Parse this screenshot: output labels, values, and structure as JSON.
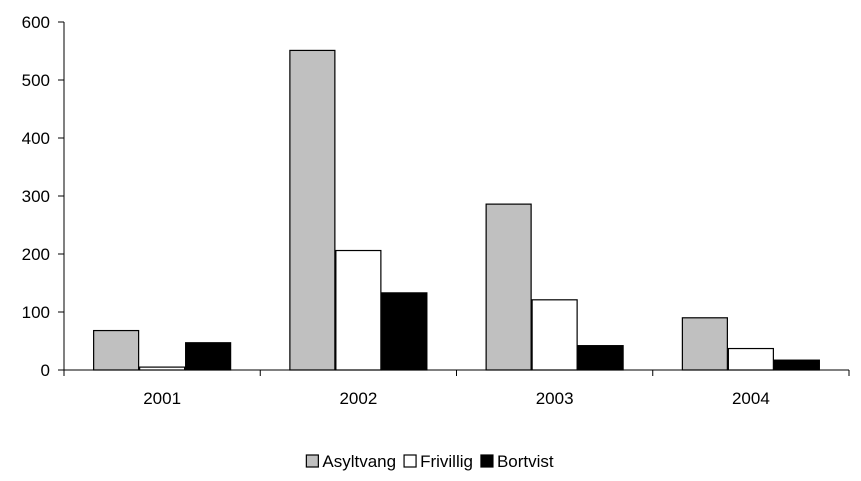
{
  "chart_data": {
    "type": "bar",
    "title": "",
    "xlabel": "",
    "ylabel": "",
    "categories": [
      "2001",
      "2002",
      "2003",
      "2004"
    ],
    "series": [
      {
        "name": "Asyltvang",
        "color": "#c0c0c0",
        "values": [
          68,
          551,
          286,
          90
        ]
      },
      {
        "name": "Frivillig",
        "color": "#ffffff",
        "values": [
          5,
          206,
          121,
          37
        ]
      },
      {
        "name": "Bortvist",
        "color": "#000000",
        "values": [
          47,
          133,
          42,
          17
        ]
      }
    ],
    "ylim": [
      0,
      600
    ],
    "yticks": [
      "0",
      "100",
      "200",
      "300",
      "400",
      "500",
      "600"
    ],
    "grid": false,
    "legend_position": "bottom"
  }
}
